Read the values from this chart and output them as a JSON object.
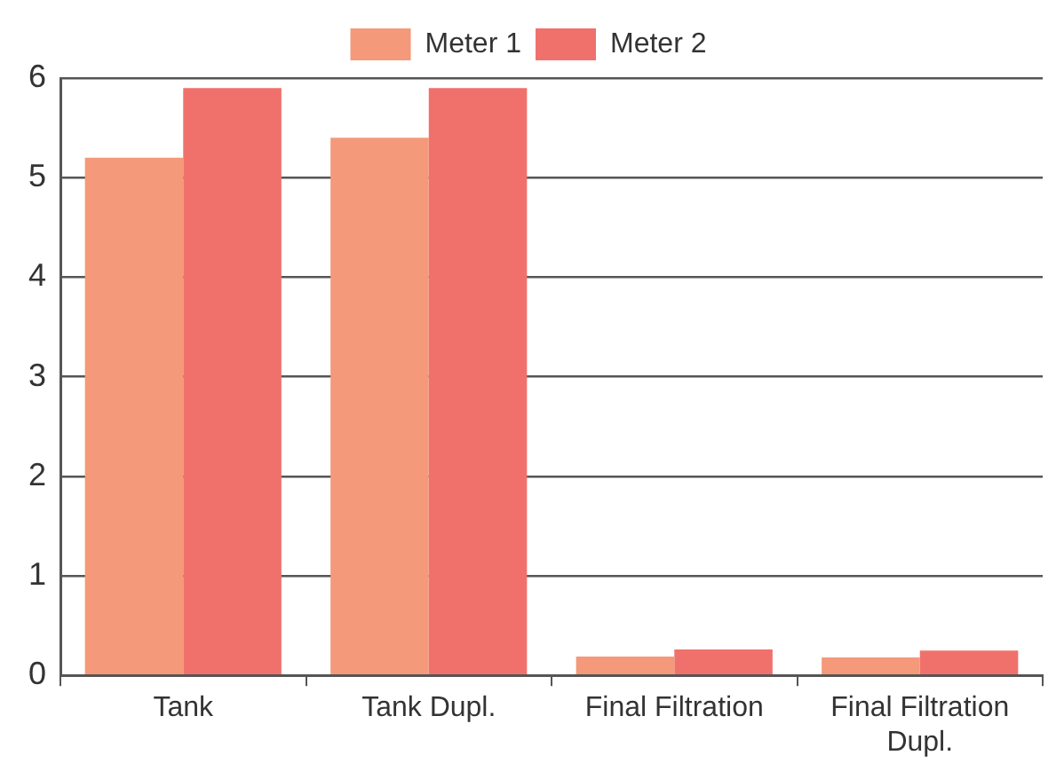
{
  "chart_data": {
    "type": "bar",
    "categories": [
      "Tank",
      "Tank Dupl.",
      "Final Filtration",
      "Final Filtration\nDupl."
    ],
    "series": [
      {
        "name": "Meter 1",
        "color": "#f4997a",
        "values": [
          5.2,
          5.4,
          0.19,
          0.18
        ]
      },
      {
        "name": "Meter 2",
        "color": "#f0716c",
        "values": [
          5.9,
          5.9,
          0.26,
          0.25
        ]
      }
    ],
    "ylim": [
      0,
      6
    ],
    "yticks": [
      0,
      1,
      2,
      3,
      4,
      5,
      6
    ],
    "grid": "y",
    "legend": "top"
  }
}
